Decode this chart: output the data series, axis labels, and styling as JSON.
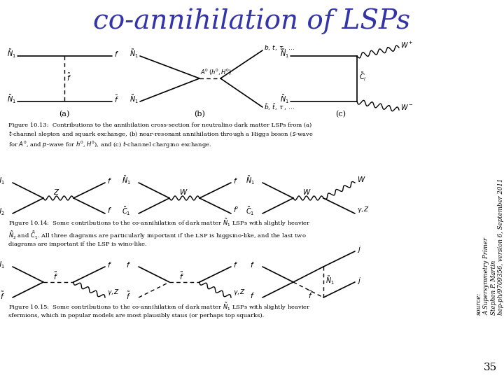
{
  "title": "co-annihilation of LSPs",
  "title_color": "#3333aa",
  "title_fontsize": 28,
  "title_style": "italic",
  "title_font": "serif",
  "bg_color": "#ffffff",
  "source_line1": "source:",
  "source_line2": "A Supersymmetry Primer",
  "source_line3": "Stephen P. Martin",
  "source_line4": "hep-ph/9709356, version 6, September 2011",
  "page_number": "35"
}
